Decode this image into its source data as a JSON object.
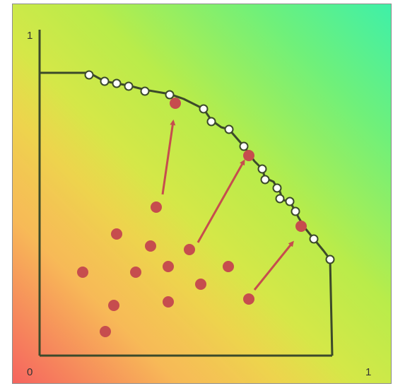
{
  "labels": {
    "y_max": "1",
    "x_max": "1",
    "origin": "0"
  },
  "colors": {
    "curve": "#3c4a2a",
    "open_marker_fill": "#ffffff",
    "solution_dot": "#c64d4e",
    "arrow": "#c64d4e"
  }
}
